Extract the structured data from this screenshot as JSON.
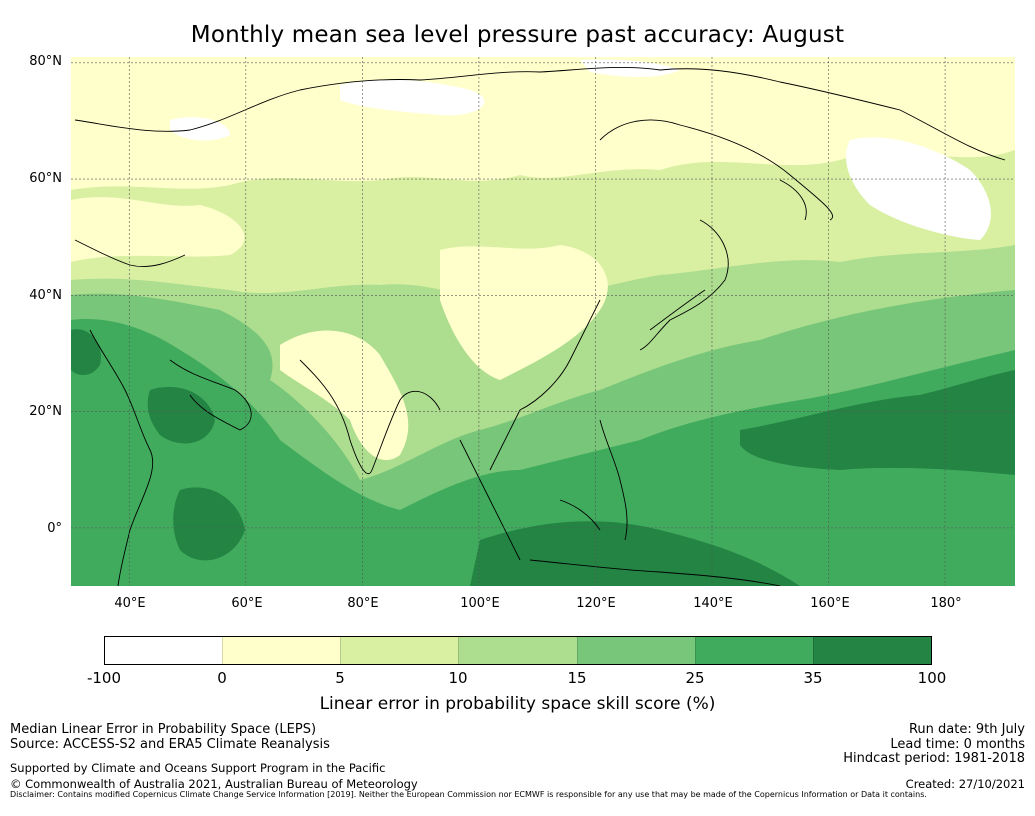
{
  "title": "Monthly mean sea level pressure past accuracy: August",
  "map": {
    "lat_labels": [
      "80°N",
      "60°N",
      "40°N",
      "20°N",
      "0°"
    ],
    "lon_labels": [
      "40°E",
      "60°E",
      "80°E",
      "100°E",
      "120°E",
      "140°E",
      "160°E",
      "180°"
    ],
    "lon_range": [
      30,
      192
    ],
    "lat_range": [
      -10,
      81
    ]
  },
  "colorbar": {
    "ticks": [
      "-100",
      "0",
      "5",
      "10",
      "15",
      "25",
      "35",
      "100"
    ],
    "colors": [
      "#ffffff",
      "#ffffcc",
      "#d9f0a3",
      "#addd8e",
      "#78c679",
      "#41ab5d",
      "#238443"
    ],
    "label": "Linear error in probability space skill score (%)"
  },
  "footer": {
    "left_line1": "Median Linear Error in Probability Space (LEPS)",
    "left_line2": "Source: ACCESS-S2 and ERA5 Climate Reanalysis",
    "support": "Supported by Climate and Oceans Support Program in the Pacific",
    "copyright": "© Commonwealth of Australia 2021, Australian Bureau of Meteorology",
    "run_date": "Run date: 9th July",
    "lead_time": "Lead time: 0 months",
    "hindcast": "Hindcast period: 1981-2018",
    "created": "Created: 27/10/2021",
    "disclaimer": "Disclaimer: Contains modified Copernicus Climate Change Service Information [2019]. Neither the European Commission nor ECMWF is responsible for any use that may be made of the Copernicus Information or Data it contains."
  }
}
